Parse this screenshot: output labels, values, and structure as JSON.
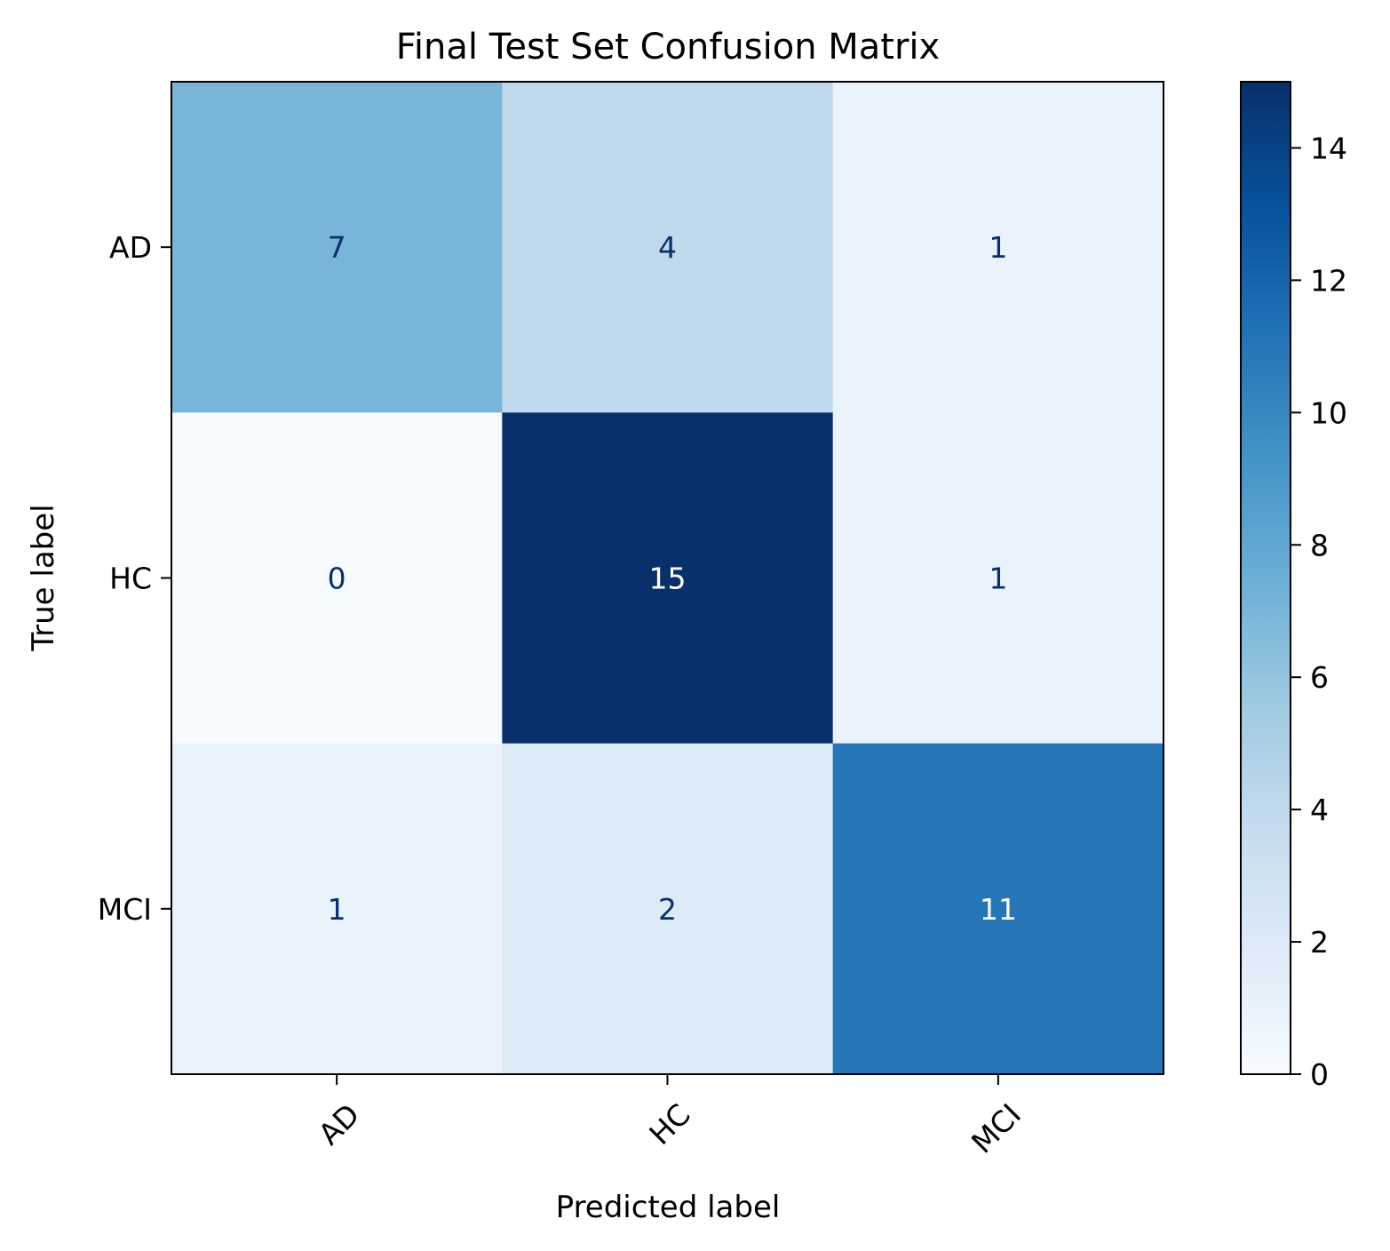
{
  "chart_data": {
    "type": "heatmap",
    "title": "Final Test Set Confusion Matrix",
    "xlabel": "Predicted label",
    "ylabel": "True label",
    "x_categories": [
      "AD",
      "HC",
      "MCI"
    ],
    "y_categories": [
      "AD",
      "HC",
      "MCI"
    ],
    "values": [
      [
        7,
        4,
        1
      ],
      [
        0,
        15,
        1
      ],
      [
        1,
        2,
        11
      ]
    ],
    "colormap": "Blues",
    "colorbar": {
      "range": [
        0,
        15
      ],
      "ticks": [
        0,
        2,
        4,
        6,
        8,
        10,
        12,
        14
      ]
    },
    "x_tick_rotation": "45deg",
    "colors": {
      "light_text": "#ffffff",
      "dark_text": "#08306b",
      "frame": "#000000"
    }
  }
}
